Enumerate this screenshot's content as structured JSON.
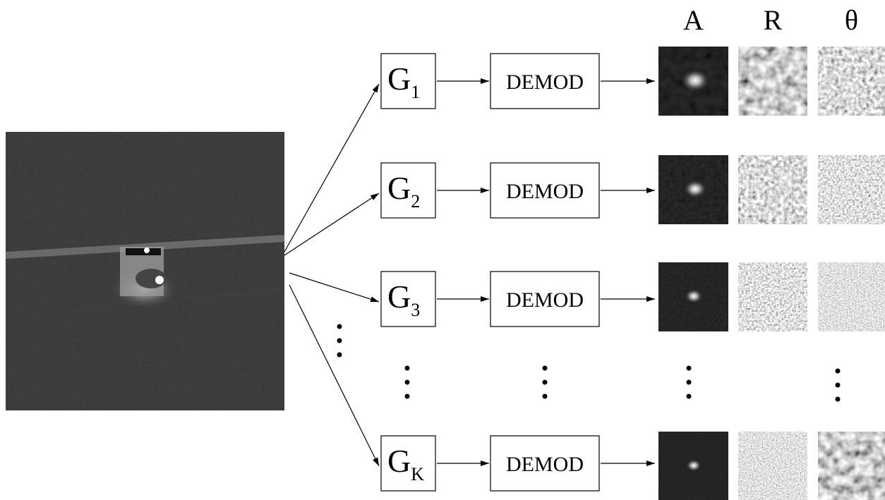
{
  "headers": [
    "A",
    "R",
    "θ"
  ],
  "rows": [
    {
      "filter": {
        "base": "G",
        "sub": "1"
      },
      "block": "DEMOD"
    },
    {
      "filter": {
        "base": "G",
        "sub": "2"
      },
      "block": "DEMOD"
    },
    {
      "filter": {
        "base": "G",
        "sub": "3"
      },
      "block": "DEMOD"
    },
    {
      "filter": {
        "base": "G",
        "sub": "K"
      },
      "block": "DEMOD"
    }
  ]
}
